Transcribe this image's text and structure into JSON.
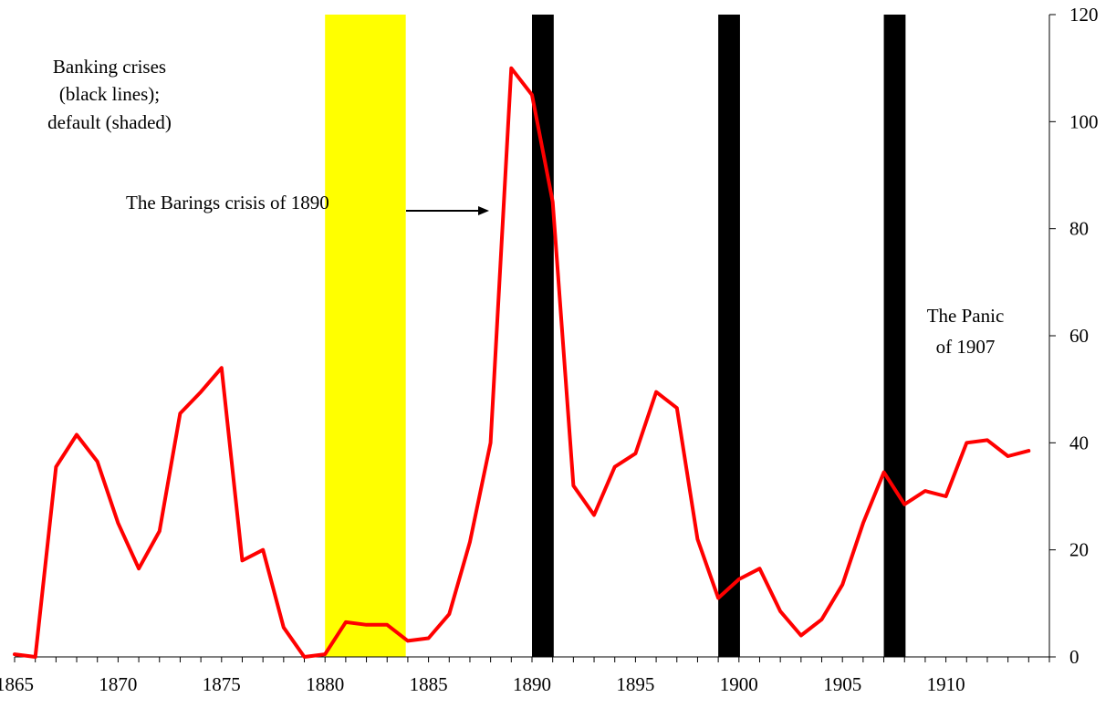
{
  "chart_data": {
    "type": "line",
    "title": "",
    "xlabel": "",
    "ylabel": "",
    "xlim": [
      1865,
      1915
    ],
    "ylim": [
      0,
      120
    ],
    "y_axis_side": "right",
    "x_ticks": [
      1865,
      1870,
      1875,
      1880,
      1885,
      1890,
      1895,
      1900,
      1905,
      1910
    ],
    "y_ticks": [
      0,
      20,
      40,
      60,
      80,
      100,
      120
    ],
    "grid": false,
    "series": [
      {
        "color": "#ff0000",
        "points": [
          [
            1865,
            0.5
          ],
          [
            1866,
            0
          ],
          [
            1867,
            35.5
          ],
          [
            1868,
            41.5
          ],
          [
            1869,
            36.5
          ],
          [
            1870,
            25
          ],
          [
            1871,
            16.5
          ],
          [
            1872,
            23.5
          ],
          [
            1873,
            45.5
          ],
          [
            1874,
            49.5
          ],
          [
            1875,
            54
          ],
          [
            1876,
            18
          ],
          [
            1877,
            20
          ],
          [
            1878,
            5.5
          ],
          [
            1879,
            0
          ],
          [
            1880,
            0.5
          ],
          [
            1881,
            6.5
          ],
          [
            1882,
            6
          ],
          [
            1883,
            6
          ],
          [
            1884,
            3
          ],
          [
            1885,
            3.5
          ],
          [
            1886,
            8
          ],
          [
            1887,
            21.5
          ],
          [
            1888,
            40
          ],
          [
            1889,
            110
          ],
          [
            1890,
            105
          ],
          [
            1891,
            85
          ],
          [
            1892,
            32
          ],
          [
            1893,
            26.5
          ],
          [
            1894,
            35.5
          ],
          [
            1895,
            38
          ],
          [
            1896,
            49.5
          ],
          [
            1897,
            46.5
          ],
          [
            1898,
            22
          ],
          [
            1899,
            11
          ],
          [
            1900,
            14.5
          ],
          [
            1901,
            16.5
          ],
          [
            1902,
            8.5
          ],
          [
            1903,
            4
          ],
          [
            1904,
            7
          ],
          [
            1905,
            13.5
          ],
          [
            1906,
            25
          ],
          [
            1907,
            34.5
          ],
          [
            1908,
            28.5
          ],
          [
            1909,
            31
          ],
          [
            1910,
            30
          ],
          [
            1911,
            40
          ],
          [
            1912,
            40.5
          ],
          [
            1913,
            37.5
          ],
          [
            1914,
            38.5
          ]
        ]
      }
    ],
    "default_periods": [
      {
        "start": 1880,
        "end": 1883.9,
        "color": "#ffff00"
      }
    ],
    "banking_crises": [
      {
        "start": 1890,
        "end": 1891.05,
        "color": "#000000"
      },
      {
        "start": 1899,
        "end": 1900.05,
        "color": "#000000"
      },
      {
        "start": 1907,
        "end": 1908.05,
        "color": "#000000"
      }
    ],
    "annotations": {
      "legend_lines": [
        "Banking crises",
        "(black lines);",
        "default (shaded)"
      ],
      "barings": "The Barings crisis of 1890",
      "panic_lines": [
        "The Panic",
        "of 1907"
      ]
    }
  }
}
